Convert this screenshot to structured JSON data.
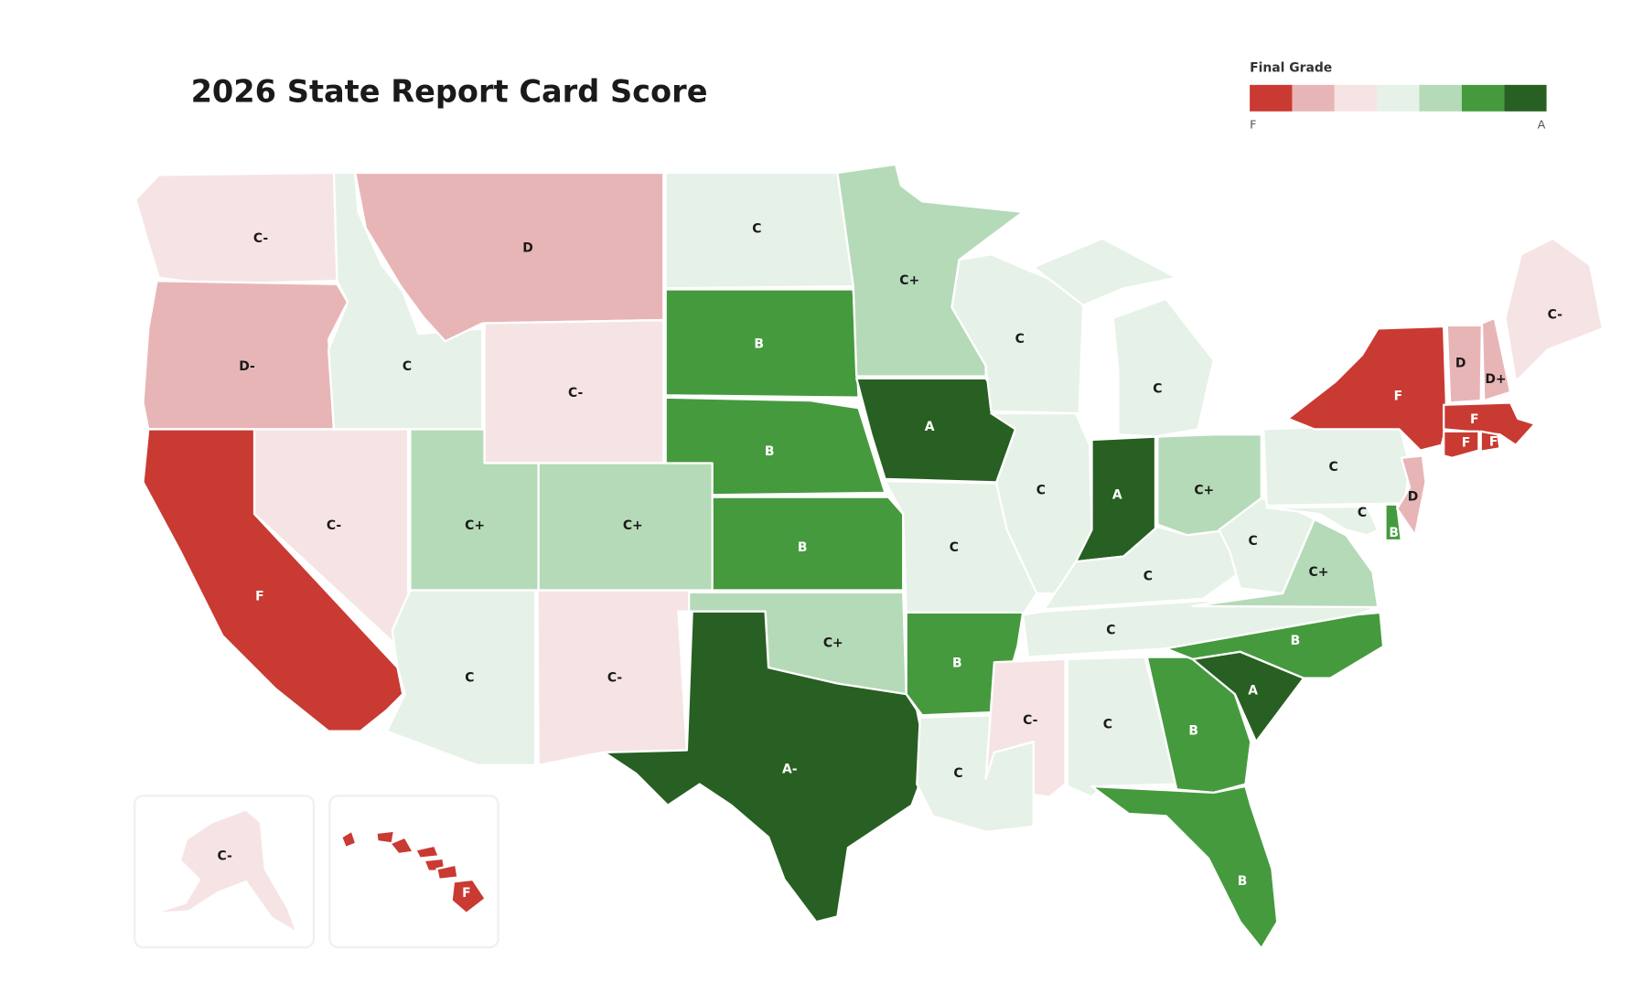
{
  "title": "2026 State Report Card Score",
  "legend": {
    "title": "Final Grade",
    "colors": [
      "#c93a32",
      "#e8b5b6",
      "#f6e4e5",
      "#e6f1e7",
      "#b5dab7",
      "#459a3e",
      "#285f22"
    ],
    "low_label": "F",
    "high_label": "A"
  },
  "states": [
    {
      "grade": "C-",
      "color": "#f6e4e5"
    },
    {
      "grade": "D-",
      "color": "#e8b5b6"
    },
    {
      "grade": "F",
      "color": "#c93a32"
    },
    {
      "grade": "C",
      "color": "#e6f1e7"
    },
    {
      "grade": "D",
      "color": "#e8b5b6"
    },
    {
      "grade": "C-",
      "color": "#f6e4e5"
    },
    {
      "grade": "C-",
      "color": "#f6e4e5"
    },
    {
      "grade": "C+",
      "color": "#b5dab7"
    },
    {
      "grade": "C+",
      "color": "#b5dab7"
    },
    {
      "grade": "C",
      "color": "#e6f1e7"
    },
    {
      "grade": "C-",
      "color": "#f6e4e5"
    },
    {
      "grade": "C",
      "color": "#e6f1e7"
    },
    {
      "grade": "B",
      "color": "#459a3e"
    },
    {
      "grade": "B",
      "color": "#459a3e"
    },
    {
      "grade": "B",
      "color": "#459a3e"
    },
    {
      "grade": "C+",
      "color": "#b5dab7"
    },
    {
      "grade": "A-",
      "color": "#285f22"
    },
    {
      "grade": "C+",
      "color": "#b5dab7"
    },
    {
      "grade": "A",
      "color": "#285f22"
    },
    {
      "grade": "C",
      "color": "#e6f1e7"
    },
    {
      "grade": "B",
      "color": "#459a3e"
    },
    {
      "grade": "C",
      "color": "#e6f1e7"
    },
    {
      "grade": "C",
      "color": "#e6f1e7"
    },
    {
      "grade": "C",
      "color": "#e6f1e7"
    },
    {
      "grade": "C",
      "color": "#e6f1e7"
    },
    {
      "grade": "A",
      "color": "#285f22"
    },
    {
      "grade": "C+",
      "color": "#b5dab7"
    },
    {
      "grade": "C",
      "color": "#e6f1e7"
    },
    {
      "grade": "C",
      "color": "#e6f1e7"
    },
    {
      "grade": "C-",
      "color": "#f6e4e5"
    },
    {
      "grade": "C",
      "color": "#e6f1e7"
    },
    {
      "grade": "B",
      "color": "#459a3e"
    },
    {
      "grade": "B",
      "color": "#459a3e"
    },
    {
      "grade": "A",
      "color": "#285f22"
    },
    {
      "grade": "B",
      "color": "#459a3e"
    },
    {
      "grade": "C+",
      "color": "#b5dab7"
    },
    {
      "grade": "C",
      "color": "#e6f1e7"
    },
    {
      "grade": "C",
      "color": "#e6f1e7"
    },
    {
      "grade": "C",
      "color": "#e6f1e7"
    },
    {
      "grade": "B",
      "color": "#459a3e"
    },
    {
      "grade": "D",
      "color": "#e8b5b6"
    },
    {
      "grade": "F",
      "color": "#c93a32"
    },
    {
      "grade": "D",
      "color": "#e8b5b6"
    },
    {
      "grade": "D+",
      "color": "#e8b5b6"
    },
    {
      "grade": "C-",
      "color": "#f6e4e5"
    },
    {
      "grade": "F",
      "color": "#c93a32"
    },
    {
      "grade": "F",
      "color": "#c93a32"
    },
    {
      "grade": "F",
      "color": "#c93a32"
    },
    {
      "grade": "C-",
      "color": "#f6e4e5"
    },
    {
      "grade": "F",
      "color": "#c93a32"
    }
  ]
}
